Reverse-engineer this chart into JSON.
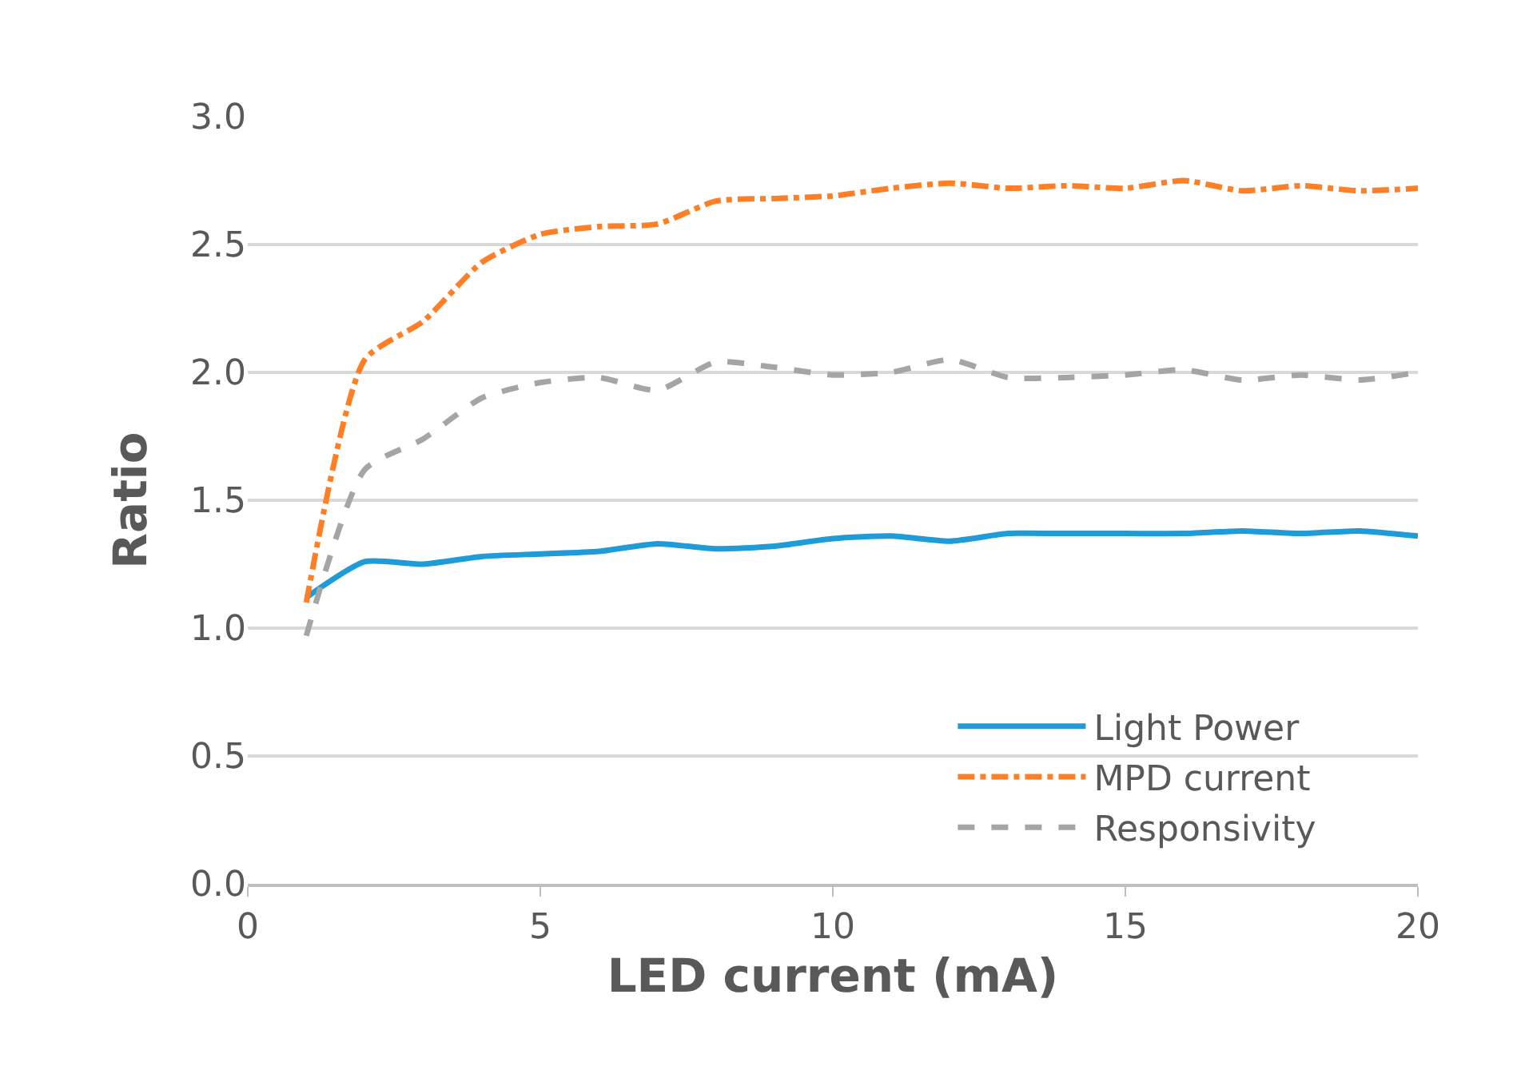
{
  "chart_data": {
    "type": "line",
    "xlabel": "LED current (mA)",
    "ylabel": "Ratio",
    "x": [
      1,
      2,
      3,
      4,
      5,
      6,
      7,
      8,
      9,
      10,
      11,
      12,
      13,
      14,
      15,
      16,
      17,
      18,
      19,
      20
    ],
    "series": [
      {
        "name": "Light Power",
        "color": "#1f9bd7",
        "line_style": "solid",
        "values": [
          1.12,
          1.26,
          1.25,
          1.28,
          1.29,
          1.3,
          1.33,
          1.31,
          1.32,
          1.35,
          1.36,
          1.34,
          1.37,
          1.37,
          1.37,
          1.37,
          1.38,
          1.37,
          1.38,
          1.36
        ]
      },
      {
        "name": "MPD current",
        "color": "#ff7f27",
        "line_style": "dashdot",
        "values": [
          1.1,
          2.05,
          2.2,
          2.43,
          2.54,
          2.57,
          2.58,
          2.67,
          2.68,
          2.69,
          2.72,
          2.74,
          2.72,
          2.73,
          2.72,
          2.75,
          2.71,
          2.73,
          2.71,
          2.72
        ]
      },
      {
        "name": "Responsivity",
        "color": "#a5a5a5",
        "line_style": "dashed",
        "values": [
          0.97,
          1.62,
          1.74,
          1.9,
          1.96,
          1.98,
          1.93,
          2.04,
          2.02,
          1.99,
          2.0,
          2.05,
          1.98,
          1.98,
          1.99,
          2.01,
          1.97,
          1.99,
          1.97,
          2.0
        ]
      }
    ],
    "xlim": [
      0,
      20
    ],
    "xticks": [
      0,
      5,
      10,
      15,
      20
    ],
    "ylim": [
      0,
      3
    ],
    "yticks": [
      {
        "value": 0,
        "label": "0.0"
      },
      {
        "value": 0.5,
        "label": "0.5"
      },
      {
        "value": 1,
        "label": "1.0"
      },
      {
        "value": 1.5,
        "label": "1.5"
      },
      {
        "value": 2,
        "label": "2.0"
      },
      {
        "value": 2.5,
        "label": "2.5"
      },
      {
        "value": 3,
        "label": "3.0"
      }
    ],
    "grid": "y",
    "legend": "bottom right",
    "marker": "none"
  }
}
